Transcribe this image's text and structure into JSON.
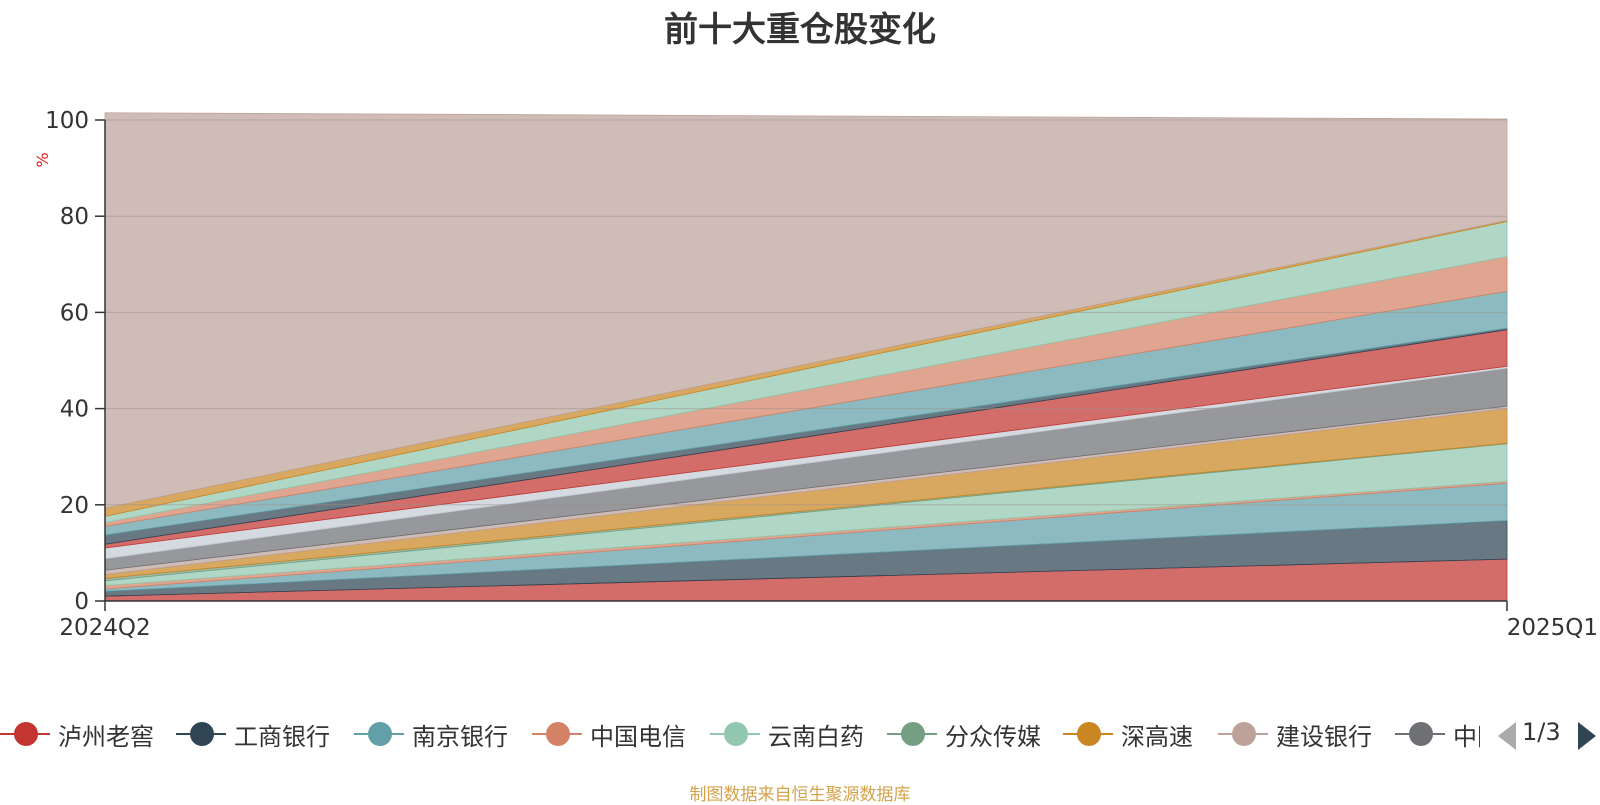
{
  "title": "前十大重仓股变化",
  "source_note": "制图数据来自恒生聚源数据库",
  "legend": {
    "items": [
      {
        "label": "泸州老窖",
        "color": "#c23531"
      },
      {
        "label": "工商银行",
        "color": "#2f4554"
      },
      {
        "label": "南京银行",
        "color": "#61a0a8"
      },
      {
        "label": "中国电信",
        "color": "#d48265"
      },
      {
        "label": "云南白药",
        "color": "#91c7ae"
      },
      {
        "label": "分众传媒",
        "color": "#749f83"
      },
      {
        "label": "深高速",
        "color": "#ca8622"
      },
      {
        "label": "建设银行",
        "color": "#bda29a"
      },
      {
        "label": "中国",
        "color": "#6e7074"
      }
    ],
    "page_indicator": "1/3"
  },
  "chart_data": {
    "type": "area",
    "stacked": true,
    "title": "前十大重仓股变化",
    "ylabel": "%",
    "xlabel": "",
    "categories": [
      "2024Q2",
      "2025Q1"
    ],
    "ylim": [
      0,
      100
    ],
    "yticks": [
      0,
      20,
      40,
      60,
      80,
      100
    ],
    "grid": true,
    "series": [
      {
        "name": "s1",
        "color": "#c23531",
        "values": [
          1.0,
          8.7
        ]
      },
      {
        "name": "s2",
        "color": "#2f4554",
        "values": [
          1.0,
          8.0
        ]
      },
      {
        "name": "s3",
        "color": "#61a0a8",
        "values": [
          0.5,
          7.8
        ]
      },
      {
        "name": "s4",
        "color": "#d48265",
        "values": [
          0.7,
          0.4
        ]
      },
      {
        "name": "s5",
        "color": "#91c7ae",
        "values": [
          1.0,
          7.8
        ]
      },
      {
        "name": "s6",
        "color": "#749f83",
        "values": [
          0.5,
          0.1
        ]
      },
      {
        "name": "s7",
        "color": "#ca8622",
        "values": [
          0.8,
          7.2
        ]
      },
      {
        "name": "s8",
        "color": "#bda29a",
        "values": [
          0.9,
          0.5
        ]
      },
      {
        "name": "s9",
        "color": "#6e7074",
        "values": [
          2.4,
          7.9
        ]
      },
      {
        "name": "s10",
        "color": "#c4ccd3",
        "values": [
          2.2,
          0.4
        ]
      },
      {
        "name": "s11",
        "color": "#c23531",
        "values": [
          0.8,
          7.6
        ]
      },
      {
        "name": "s12",
        "color": "#2f4554",
        "values": [
          1.9,
          0.3
        ]
      },
      {
        "name": "s13",
        "color": "#61a0a8",
        "values": [
          1.8,
          7.7
        ]
      },
      {
        "name": "s14",
        "color": "#d48265",
        "values": [
          0.8,
          7.2
        ]
      },
      {
        "name": "s15",
        "color": "#91c7ae",
        "values": [
          1.3,
          7.3
        ]
      },
      {
        "name": "s16",
        "color": "#ca8622",
        "values": [
          1.7,
          0.2
        ]
      },
      {
        "name": "s17",
        "color": "#bda29a",
        "values": [
          82.2,
          21.1
        ]
      }
    ]
  }
}
